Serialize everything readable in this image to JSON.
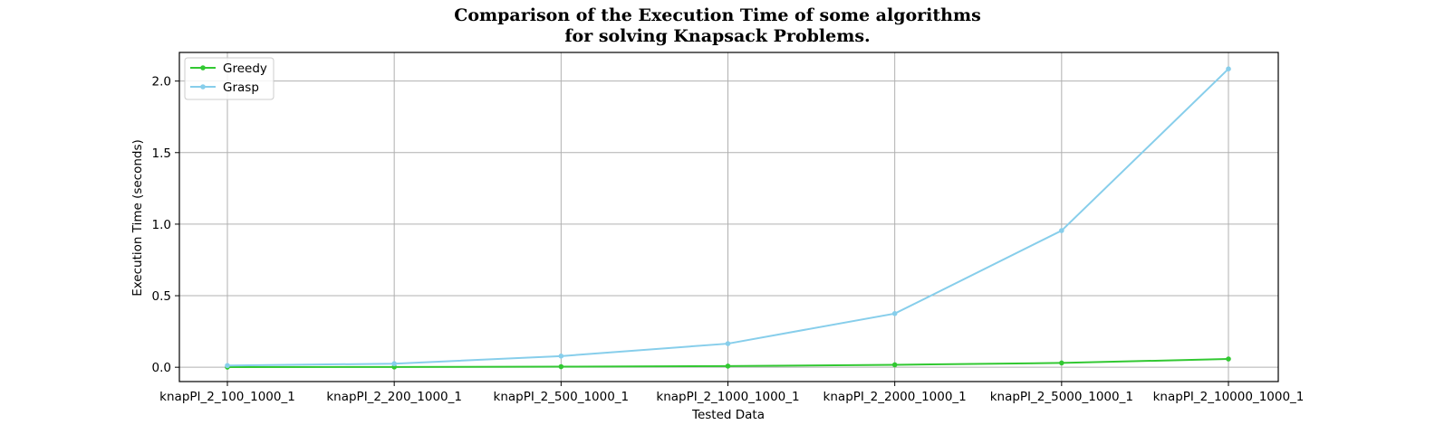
{
  "chart_data": {
    "type": "line",
    "title_line1": "Comparison of the Execution Time of some algorithms",
    "title_line2": "for solving Knapsack Problems.",
    "xlabel": "Tested Data",
    "ylabel": "Execution Time (seconds)",
    "categories": [
      "knapPI_2_100_1000_1",
      "knapPI_2_200_1000_1",
      "knapPI_2_500_1000_1",
      "knapPI_2_1000_1000_1",
      "knapPI_2_2000_1000_1",
      "knapPI_2_5000_1000_1",
      "knapPI_2_10000_1000_1"
    ],
    "ylim": [
      -0.1,
      2.2
    ],
    "yticks": [
      0.0,
      0.5,
      1.0,
      1.5,
      2.0
    ],
    "ytick_labels": [
      "0.0",
      "0.5",
      "1.0",
      "1.5",
      "2.0"
    ],
    "grid": true,
    "legend_position": "top-left",
    "series": [
      {
        "name": "Greedy",
        "color": "#32c832",
        "values": [
          0.001,
          0.002,
          0.004,
          0.008,
          0.017,
          0.03,
          0.058
        ]
      },
      {
        "name": "Grasp",
        "color": "#87ceeb",
        "values": [
          0.012,
          0.025,
          0.078,
          0.165,
          0.375,
          0.955,
          2.085
        ]
      }
    ]
  }
}
